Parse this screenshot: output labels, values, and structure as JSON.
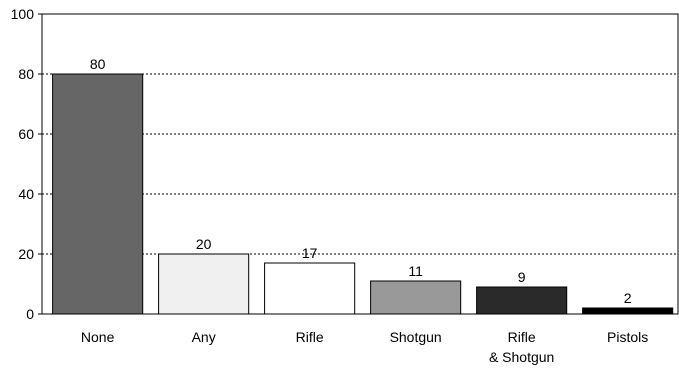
{
  "chart_data": {
    "type": "bar",
    "title": "",
    "xlabel": "",
    "ylabel": "",
    "ylim": [
      0,
      100
    ],
    "yticks": [
      0,
      20,
      40,
      60,
      80,
      100
    ],
    "grid": "horizontal dashed lines",
    "legend": "none",
    "categories": [
      "None",
      "Any",
      "Rifle",
      "Shotgun",
      "Rifle\n& Shotgun",
      "Pistols"
    ],
    "values": [
      80,
      20,
      17,
      11,
      9,
      2
    ],
    "value_labels": [
      "80",
      "20",
      "17",
      "11",
      "9",
      "2"
    ],
    "bar_colors": [
      "#666666",
      "#f0f0f0",
      "#ffffff",
      "#999999",
      "#2a2a2a",
      "#000000"
    ],
    "bar_outline_color": "#000000"
  }
}
